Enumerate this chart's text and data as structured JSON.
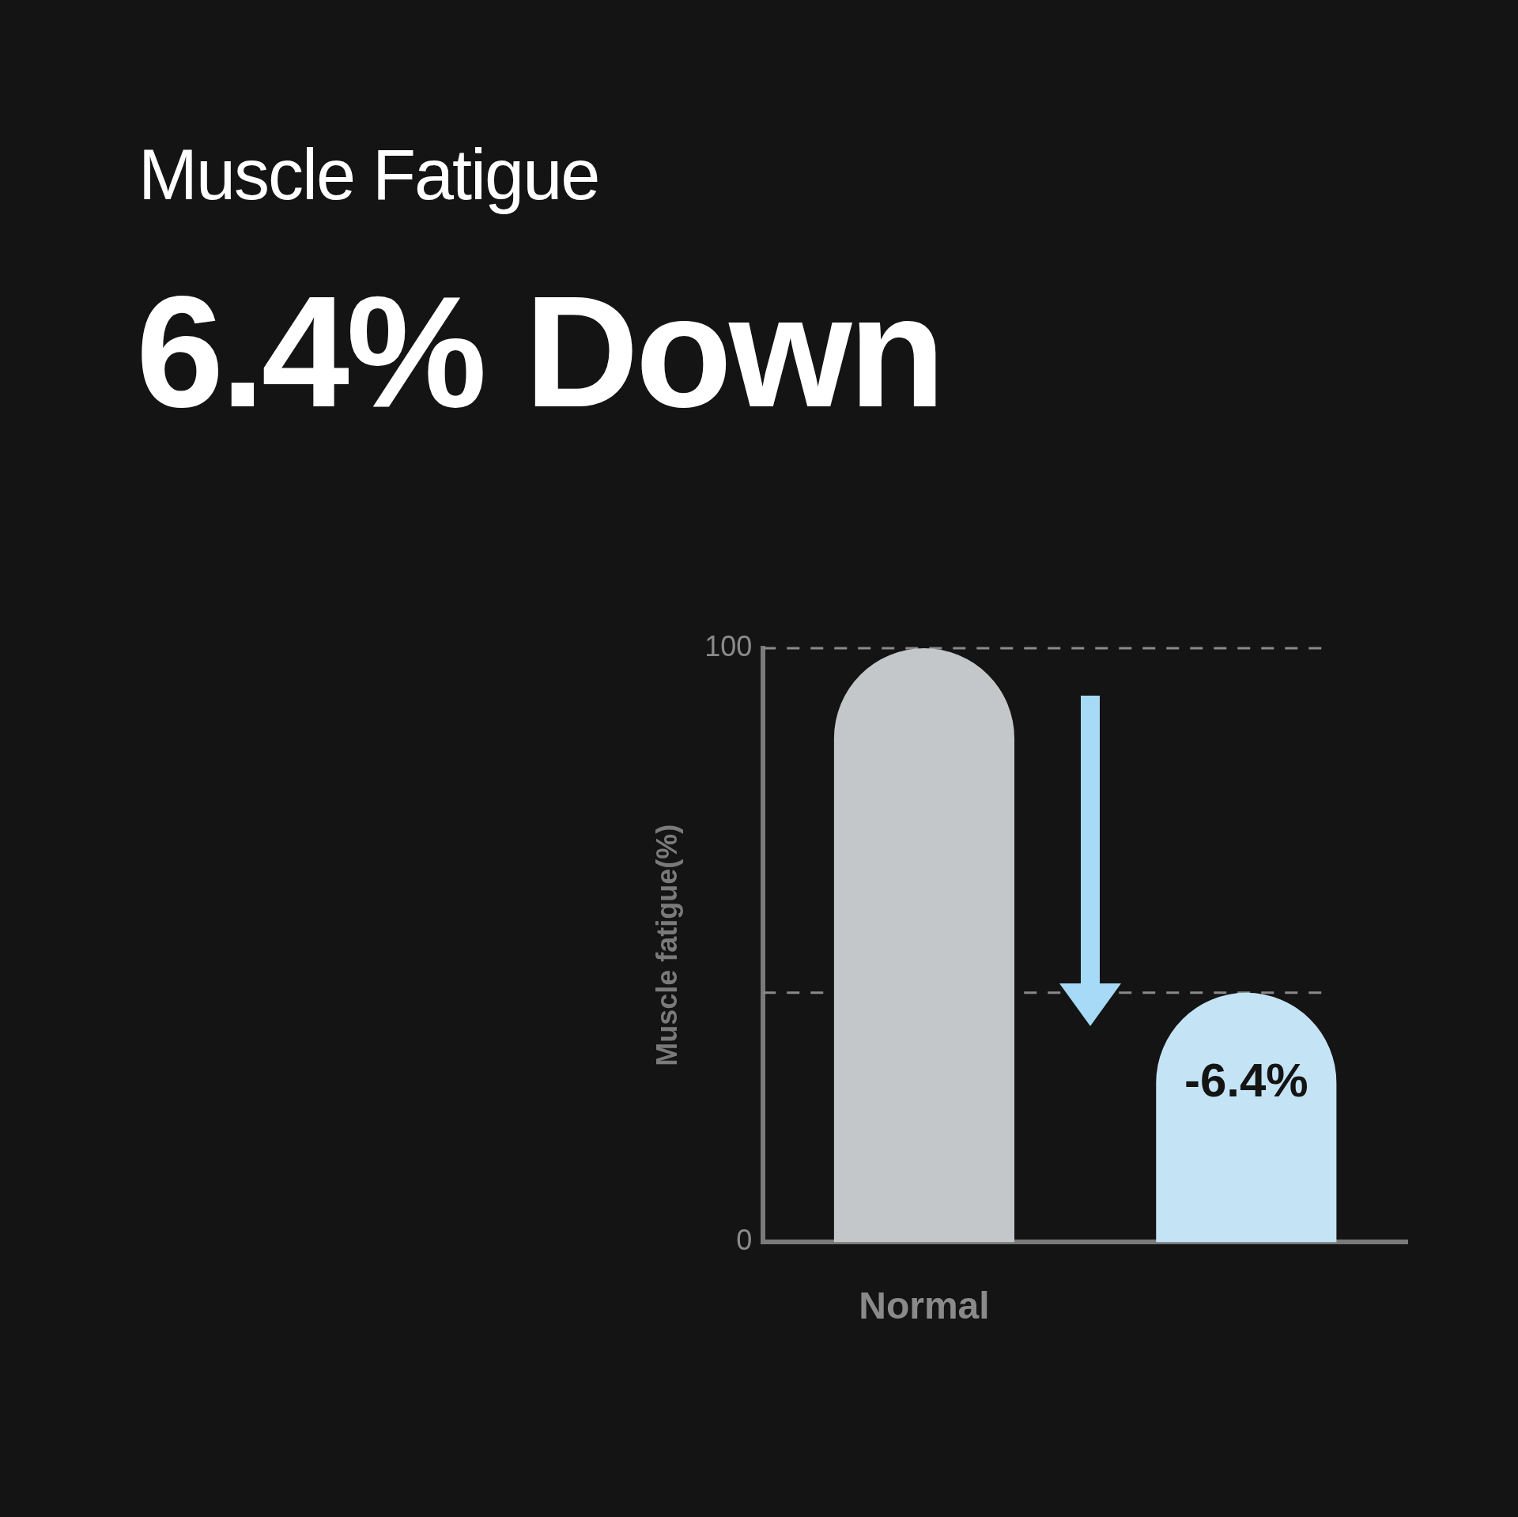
{
  "chart_data": {
    "type": "bar",
    "title": "Muscle Fatigue",
    "subtitle": "6.4% Down",
    "ylabel": "Muscle fatigue(%)",
    "categories": [
      "Normal",
      null
    ],
    "values": [
      100,
      42
    ],
    "colors": [
      "#c3c7ca",
      "#c4e4f5"
    ],
    "ylim": [
      0,
      100
    ],
    "yticks": [
      0,
      100
    ],
    "grid": false,
    "legend": false,
    "annotations": [
      "-6.4%"
    ],
    "ref_lines": [
      {
        "axis": "y",
        "value": 100,
        "color": "#8a8a8a",
        "line_style": "dashed"
      },
      {
        "axis": "y",
        "value": 42,
        "color": "#8a8a8a",
        "line_style": "dashed"
      }
    ]
  }
}
